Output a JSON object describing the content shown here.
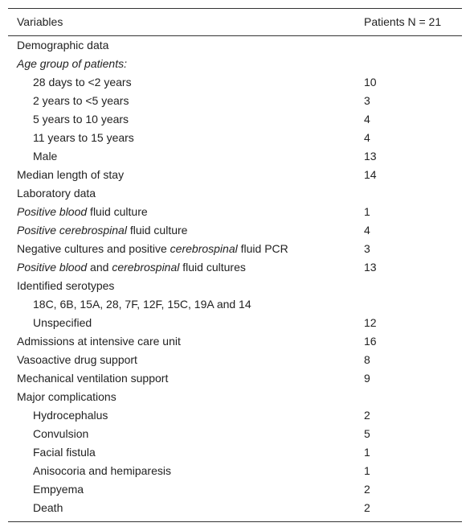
{
  "table": {
    "header": [
      "Variables",
      "Patients N = 21"
    ],
    "rows": [
      {
        "label": [
          "Demographic data"
        ]
      },
      {
        "label": [
          {
            "text": "Age group of patients:",
            "italic": true
          }
        ]
      },
      {
        "label": [
          "28 days to <2 years"
        ],
        "indent": true,
        "value": 10
      },
      {
        "label": [
          "2 years to <5 years"
        ],
        "indent": true,
        "value": 3
      },
      {
        "label": [
          "5 years to 10 years"
        ],
        "indent": true,
        "value": 4
      },
      {
        "label": [
          "11 years to 15 years"
        ],
        "indent": true,
        "value": 4
      },
      {
        "label": [
          "Male"
        ],
        "indent": true,
        "value": 13
      },
      {
        "label": [
          "Median length of stay"
        ],
        "value": 14
      },
      {
        "label": [
          "Laboratory data"
        ]
      },
      {
        "label": [
          {
            "text": "Positive blood",
            "italic": true
          },
          " fluid culture"
        ],
        "value": 1
      },
      {
        "label": [
          {
            "text": "Positive cerebrospinal",
            "italic": true
          },
          " fluid culture"
        ],
        "value": 4
      },
      {
        "label": [
          "Negative cultures and positive ",
          {
            "text": "cerebrospinal",
            "italic": true
          },
          " fluid PCR"
        ],
        "value": 3
      },
      {
        "label": [
          {
            "text": "Positive blood",
            "italic": true
          },
          " and ",
          {
            "text": "cerebrospinal",
            "italic": true
          },
          " fluid cultures"
        ],
        "value": 13
      },
      {
        "label": [
          "Identified serotypes"
        ]
      },
      {
        "label": [
          "18C, 6B, 15A, 28, 7F, 12F, 15C, 19A and 14"
        ],
        "indent": true
      },
      {
        "label": [
          "Unspecified"
        ],
        "indent": true,
        "value": 12
      },
      {
        "label": [
          "Admissions at intensive care unit"
        ],
        "value": 16
      },
      {
        "label": [
          "Vasoactive drug support"
        ],
        "value": 8
      },
      {
        "label": [
          "Mechanical ventilation support"
        ],
        "value": 9
      },
      {
        "label": [
          "Major complications"
        ]
      },
      {
        "label": [
          "Hydrocephalus"
        ],
        "indent": true,
        "value": 2
      },
      {
        "label": [
          "Convulsion"
        ],
        "indent": true,
        "value": 5
      },
      {
        "label": [
          "Facial fistula"
        ],
        "indent": true,
        "value": 1
      },
      {
        "label": [
          "Anisocoria and hemiparesis"
        ],
        "indent": true,
        "value": 1
      },
      {
        "label": [
          "Empyema"
        ],
        "indent": true,
        "value": 2
      },
      {
        "label": [
          "Death"
        ],
        "indent": true,
        "value": 2
      }
    ]
  }
}
